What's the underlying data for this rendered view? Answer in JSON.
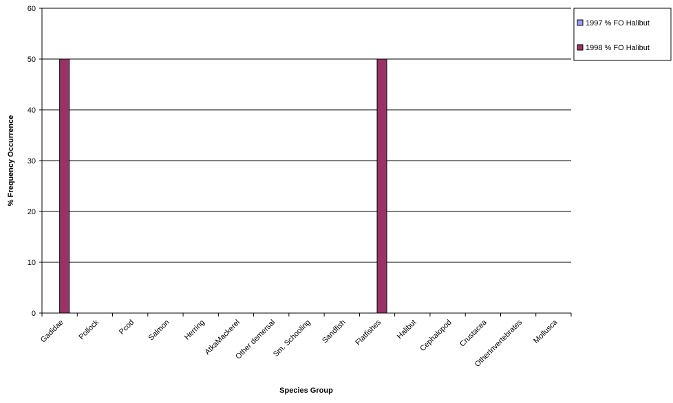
{
  "chart_data": {
    "type": "bar",
    "title": "",
    "xlabel": "Species Group",
    "ylabel": "% Frequency Occurrence",
    "ylim": [
      0,
      60
    ],
    "yticks": [
      "0",
      "10",
      "20",
      "30",
      "40",
      "50",
      "60"
    ],
    "grid": true,
    "legend_position": "right",
    "categories": [
      "Gadidae",
      "Pollock",
      "Pcod",
      "Salmon",
      "Herring",
      "AtkaMackerel",
      "Other demersal",
      "Sm. Schooling",
      "Sandfish",
      "Flatfishes",
      "Halibut",
      "Cephalopod",
      "Crustacea",
      "OtherInvertebrates",
      "Mollusca"
    ],
    "series": [
      {
        "name": "1997 % FO Halibut",
        "color": "#9999ff",
        "values": [
          0,
          0,
          0,
          0,
          0,
          0,
          0,
          0,
          0,
          0,
          0,
          0,
          0,
          0,
          0
        ]
      },
      {
        "name": "1998 % FO Halibut",
        "color": "#993366",
        "values": [
          50,
          0,
          0,
          0,
          0,
          0,
          0,
          0,
          0,
          50,
          0,
          0,
          0,
          0,
          0
        ]
      }
    ]
  }
}
